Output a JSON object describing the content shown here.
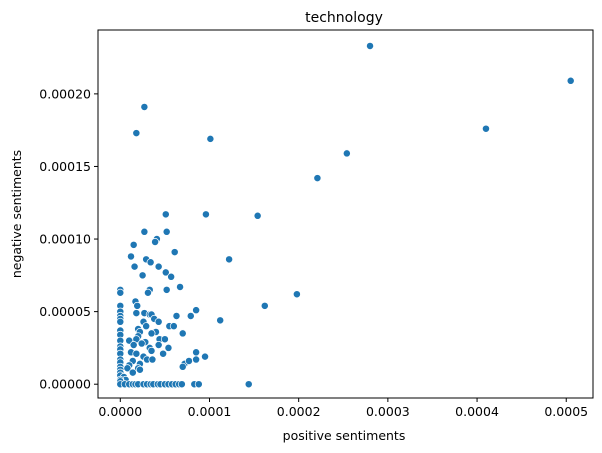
{
  "chart_data": {
    "type": "scatter",
    "title": "technology",
    "xlabel": "positive sentiments",
    "ylabel": "negative sentiments",
    "xlim": [
      -2.5e-05,
      0.00053
    ],
    "ylim": [
      -9.5e-06,
      0.000244
    ],
    "xticks": [
      0,
      0.0001,
      0.0002,
      0.0003,
      0.0004,
      0.0005
    ],
    "xtick_labels": [
      "0.0000",
      "0.0001",
      "0.0002",
      "0.0003",
      "0.0004",
      "0.0005"
    ],
    "yticks": [
      0,
      5e-05,
      0.0001,
      0.00015,
      0.0002
    ],
    "ytick_labels": [
      "0.00000",
      "0.00005",
      "0.00010",
      "0.00015",
      "0.00020"
    ],
    "grid": false,
    "marker_color": "#1f77b4",
    "series": [
      {
        "points": [
          [
            0.00028,
            0.000233
          ],
          [
            0.000505,
            0.000209
          ],
          [
            0.00041,
            0.000176
          ],
          [
            2.7e-05,
            0.000191
          ],
          [
            1.8e-05,
            0.000173
          ],
          [
            0.000101,
            0.000169
          ],
          [
            0.000254,
            0.000159
          ],
          [
            0.000221,
            0.000142
          ],
          [
            5.1e-05,
            0.000117
          ],
          [
            9.6e-05,
            0.000117
          ],
          [
            0.000154,
            0.000116
          ],
          [
            2.7e-05,
            0.000105
          ],
          [
            5.2e-05,
            0.000105
          ],
          [
            4.1e-05,
            0.0001
          ],
          [
            3.9e-05,
            9.8e-05
          ],
          [
            1.5e-05,
            9.6e-05
          ],
          [
            6.1e-05,
            9.1e-05
          ],
          [
            1.2e-05,
            8.8e-05
          ],
          [
            0.000122,
            8.6e-05
          ],
          [
            2.9e-05,
            8.6e-05
          ],
          [
            3.4e-05,
            8.4e-05
          ],
          [
            1.6e-05,
            8.1e-05
          ],
          [
            4.3e-05,
            8.1e-05
          ],
          [
            5.1e-05,
            7.7e-05
          ],
          [
            5.7e-05,
            7.4e-05
          ],
          [
            2.5e-05,
            7.5e-05
          ],
          [
            6.7e-05,
            6.7e-05
          ],
          [
            3.3e-05,
            6.5e-05
          ],
          [
            5.2e-05,
            6.5e-05
          ],
          [
            3.1e-05,
            6.3e-05
          ],
          [
            0.0,
            6.5e-05
          ],
          [
            0.0,
            6.3e-05
          ],
          [
            0.000198,
            6.2e-05
          ],
          [
            1.7e-05,
            5.7e-05
          ],
          [
            1.9e-05,
            5.4e-05
          ],
          [
            0.0,
            5.4e-05
          ],
          [
            0.000162,
            5.4e-05
          ],
          [
            0.0,
            5e-05
          ],
          [
            8.5e-05,
            5.1e-05
          ],
          [
            1.8e-05,
            4.9e-05
          ],
          [
            2.7e-05,
            4.9e-05
          ],
          [
            3.3e-05,
            4.8e-05
          ],
          [
            3.5e-05,
            4.8e-05
          ],
          [
            3.8e-05,
            4.5e-05
          ],
          [
            0.0,
            4.7e-05
          ],
          [
            0.0,
            4.5e-05
          ],
          [
            0.0,
            4.3e-05
          ],
          [
            6.3e-05,
            4.7e-05
          ],
          [
            7.9e-05,
            4.7e-05
          ],
          [
            4.3e-05,
            4.3e-05
          ],
          [
            0.000112,
            4.4e-05
          ],
          [
            2.6e-05,
            4.3e-05
          ],
          [
            2.9e-05,
            4e-05
          ],
          [
            2e-05,
            3.8e-05
          ],
          [
            2.2e-05,
            3.6e-05
          ],
          [
            0.0,
            3.7e-05
          ],
          [
            0.0,
            3.4e-05
          ],
          [
            5.5e-05,
            4e-05
          ],
          [
            6e-05,
            4e-05
          ],
          [
            4e-05,
            3.6e-05
          ],
          [
            3.5e-05,
            3.5e-05
          ],
          [
            2e-05,
            3.3e-05
          ],
          [
            1.8e-05,
            3.1e-05
          ],
          [
            0.0,
            3e-05
          ],
          [
            1e-05,
            3e-05
          ],
          [
            2.8e-05,
            2.9e-05
          ],
          [
            4.4e-05,
            3.1e-05
          ],
          [
            5e-05,
            3.1e-05
          ],
          [
            7e-05,
            3.5e-05
          ],
          [
            2.4e-05,
            2.8e-05
          ],
          [
            1.5e-05,
            2.7e-05
          ],
          [
            0.0,
            2.6e-05
          ],
          [
            0.0,
            2.4e-05
          ],
          [
            4.3e-05,
            2.7e-05
          ],
          [
            5.4e-05,
            2.5e-05
          ],
          [
            3.3e-05,
            2.5e-05
          ],
          [
            3.5e-05,
            2.3e-05
          ],
          [
            1.2e-05,
            2.2e-05
          ],
          [
            1.8e-05,
            2.1e-05
          ],
          [
            0.0,
            2.1e-05
          ],
          [
            4.8e-05,
            2.1e-05
          ],
          [
            8.5e-05,
            2.2e-05
          ],
          [
            9.5e-05,
            1.9e-05
          ],
          [
            2.6e-05,
            1.9e-05
          ],
          [
            3e-05,
            1.7e-05
          ],
          [
            3.6e-05,
            1.7e-05
          ],
          [
            0.0,
            1.7e-05
          ],
          [
            0.0,
            1.5e-05
          ],
          [
            1.4e-05,
            1.6e-05
          ],
          [
            2.2e-05,
            1.4e-05
          ],
          [
            1e-05,
            1.3e-05
          ],
          [
            7.2e-05,
            1.4e-05
          ],
          [
            7e-05,
            1.2e-05
          ],
          [
            7.7e-05,
            1.6e-05
          ],
          [
            8.5e-05,
            1.7e-05
          ],
          [
            2e-05,
            1.1e-05
          ],
          [
            2.2e-05,
            1e-05
          ],
          [
            0.0,
            1.2e-05
          ],
          [
            0.0,
            1e-05
          ],
          [
            8e-06,
            1.1e-05
          ],
          [
            1.4e-05,
            8e-06
          ],
          [
            0.0,
            8e-06
          ],
          [
            0.0,
            6e-06
          ],
          [
            4e-06,
            5e-06
          ],
          [
            6e-06,
            3e-06
          ],
          [
            0.0,
            3e-06
          ],
          [
            0.0,
            2e-06
          ],
          [
            0.0,
            0.0
          ],
          [
            5e-06,
            0.0
          ],
          [
            1e-05,
            0.0
          ],
          [
            1.4e-05,
            0.0
          ],
          [
            1.7e-05,
            0.0
          ],
          [
            2e-05,
            0.0
          ],
          [
            2.6e-05,
            0.0
          ],
          [
            3e-05,
            0.0
          ],
          [
            3.4e-05,
            0.0
          ],
          [
            3.7e-05,
            0.0
          ],
          [
            4.2e-05,
            0.0
          ],
          [
            4.5e-05,
            0.0
          ],
          [
            5e-05,
            0.0
          ],
          [
            5.4e-05,
            0.0
          ],
          [
            5.8e-05,
            0.0
          ],
          [
            6.2e-05,
            0.0
          ],
          [
            6.6e-05,
            0.0
          ],
          [
            6.9e-05,
            0.0
          ],
          [
            8.3e-05,
            0.0
          ],
          [
            8.8e-05,
            0.0
          ],
          [
            0.000144,
            0.0
          ]
        ]
      }
    ]
  }
}
